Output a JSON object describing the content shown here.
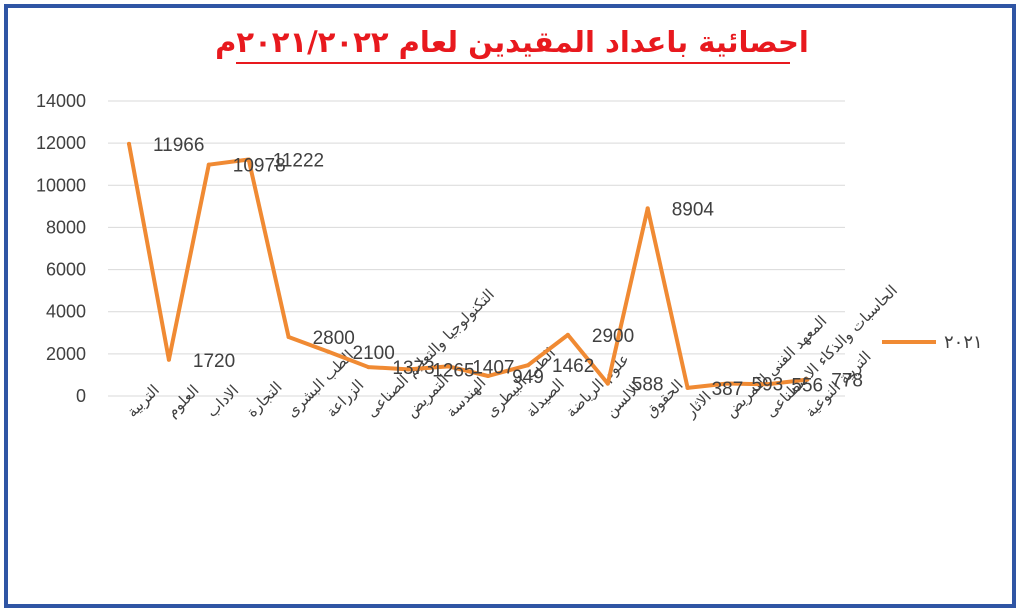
{
  "chart_data": {
    "type": "line",
    "title": "احصائية باعداد المقيدين لعام ٢٠٢١/٢٠٢٢م",
    "xlabel": "",
    "ylabel": "",
    "ylim": [
      0,
      14000
    ],
    "yticks": [
      0,
      2000,
      4000,
      6000,
      8000,
      10000,
      12000,
      14000
    ],
    "grid": true,
    "legend_position": "right",
    "categories": [
      "التربية",
      "العلوم",
      "الاداب",
      "التجارة",
      "الطب البشرى",
      "الزراعة",
      "التكنولوجيا والتعليم الصناعى",
      "التمريض",
      "الهندسة",
      "الطب البيطرى",
      "الصيدلة",
      "علوم الرياضة",
      "الالسن",
      "الحقوق",
      "الاثار",
      "المعهد الفنى للتمريض",
      "الحاسبات والذكاء الاصطناعى",
      "التربية النوعية"
    ],
    "series": [
      {
        "name": "٢٠٢١",
        "color": "#f08a33",
        "values": [
          11966,
          1720,
          10978,
          11222,
          2800,
          2100,
          1373,
          1265,
          1407,
          949,
          1462,
          2900,
          588,
          8904,
          387,
          593,
          556,
          778
        ]
      }
    ]
  }
}
